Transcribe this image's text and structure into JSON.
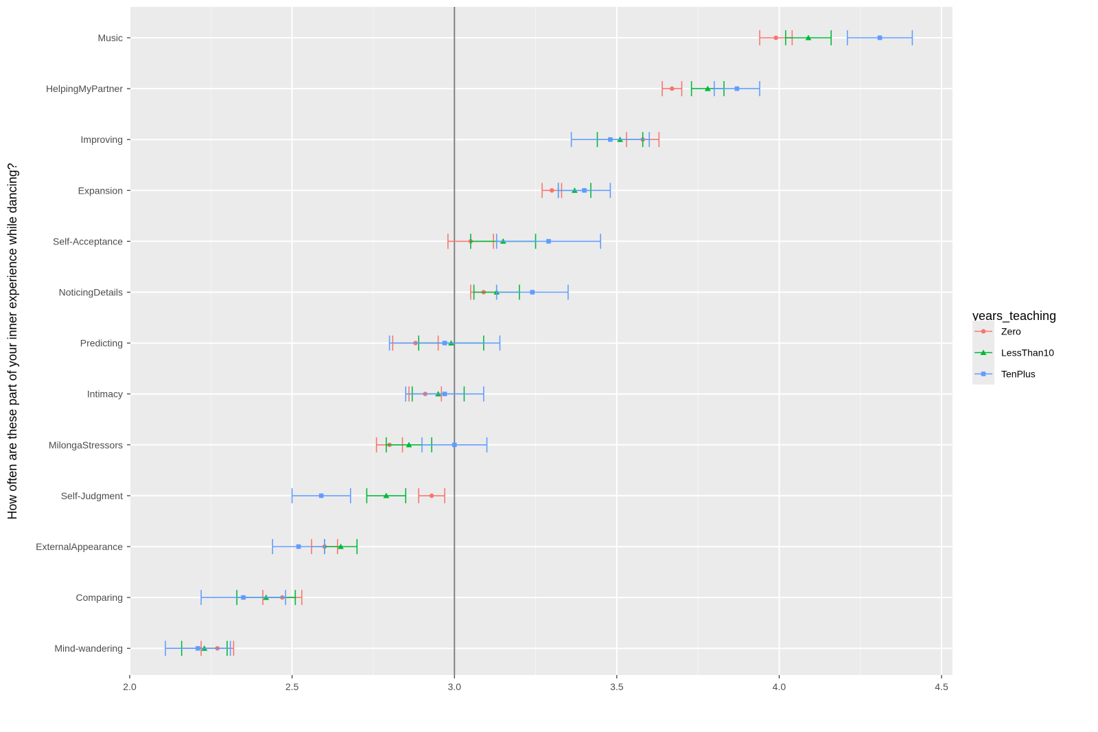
{
  "chart_data": {
    "type": "scatter",
    "subtype": "point-with-errorbars",
    "title": "",
    "xlabel": "",
    "ylabel": "How often are these part of your inner experience while dancing?",
    "xlim": [
      2.0,
      4.5
    ],
    "x_ticks": [
      "2.0",
      "2.5",
      "3.0",
      "3.5",
      "4.0",
      "4.5"
    ],
    "reference_line_x": 3.0,
    "grid": true,
    "legend": {
      "title": "years_teaching",
      "position": "right"
    },
    "categories": [
      "Music",
      "HelpingMyPartner",
      "Improving",
      "Expansion",
      "Self-Acceptance",
      "NoticingDetails",
      "Predicting",
      "Intimacy",
      "MilongaStressors",
      "Self-Judgment",
      "ExternalAppearance",
      "Comparing",
      "Mind-wandering"
    ],
    "series": [
      {
        "name": "Zero",
        "color": "#F8766D",
        "marker": "circle",
        "mean": [
          3.99,
          3.67,
          3.58,
          3.3,
          3.05,
          3.09,
          2.88,
          2.91,
          2.8,
          2.93,
          2.6,
          2.47,
          2.27
        ],
        "lower": [
          3.94,
          3.64,
          3.53,
          3.27,
          2.98,
          3.05,
          2.81,
          2.86,
          2.76,
          2.89,
          2.56,
          2.41,
          2.22
        ],
        "upper": [
          4.04,
          3.7,
          3.63,
          3.33,
          3.12,
          3.13,
          2.95,
          2.96,
          2.84,
          2.97,
          2.64,
          2.53,
          2.32
        ]
      },
      {
        "name": "LessThan10",
        "color": "#00BA38",
        "marker": "triangle",
        "mean": [
          4.09,
          3.78,
          3.51,
          3.37,
          3.15,
          3.13,
          2.99,
          2.95,
          2.86,
          2.79,
          2.65,
          2.42,
          2.23
        ],
        "lower": [
          4.02,
          3.73,
          3.44,
          3.32,
          3.05,
          3.06,
          2.89,
          2.87,
          2.79,
          2.73,
          2.6,
          2.33,
          2.16
        ],
        "upper": [
          4.16,
          3.83,
          3.58,
          3.42,
          3.25,
          3.2,
          3.09,
          3.03,
          2.93,
          2.85,
          2.7,
          2.51,
          2.3
        ]
      },
      {
        "name": "TenPlus",
        "color": "#619CFF",
        "marker": "square",
        "mean": [
          4.31,
          3.87,
          3.48,
          3.4,
          3.29,
          3.24,
          2.97,
          2.97,
          3.0,
          2.59,
          2.52,
          2.35,
          2.21
        ],
        "lower": [
          4.21,
          3.8,
          3.36,
          3.32,
          3.13,
          3.13,
          2.8,
          2.85,
          2.9,
          2.5,
          2.44,
          2.22,
          2.11
        ],
        "upper": [
          4.41,
          3.94,
          3.6,
          3.48,
          3.45,
          3.35,
          3.14,
          3.09,
          3.1,
          2.68,
          2.6,
          2.48,
          2.31
        ]
      }
    ]
  }
}
